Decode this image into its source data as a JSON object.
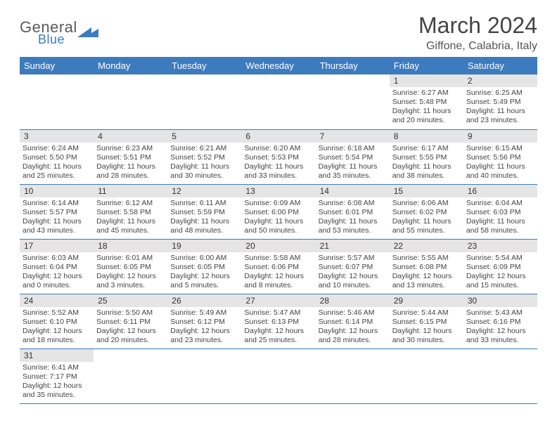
{
  "logo": {
    "general": "General",
    "blue": "Blue"
  },
  "title": "March 2024",
  "location": "Giffone, Calabria, Italy",
  "colors": {
    "header_bg": "#3d7bbf",
    "header_text": "#ffffff",
    "daybar_bg": "#e5e5e5",
    "border": "#3d7bbf",
    "text": "#444444"
  },
  "weekdays": [
    "Sunday",
    "Monday",
    "Tuesday",
    "Wednesday",
    "Thursday",
    "Friday",
    "Saturday"
  ],
  "first_weekday_index": 5,
  "days": [
    {
      "n": 1,
      "sr": "6:27 AM",
      "ss": "5:48 PM",
      "dl": "11 hours and 20 minutes."
    },
    {
      "n": 2,
      "sr": "6:25 AM",
      "ss": "5:49 PM",
      "dl": "11 hours and 23 minutes."
    },
    {
      "n": 3,
      "sr": "6:24 AM",
      "ss": "5:50 PM",
      "dl": "11 hours and 25 minutes."
    },
    {
      "n": 4,
      "sr": "6:23 AM",
      "ss": "5:51 PM",
      "dl": "11 hours and 28 minutes."
    },
    {
      "n": 5,
      "sr": "6:21 AM",
      "ss": "5:52 PM",
      "dl": "11 hours and 30 minutes."
    },
    {
      "n": 6,
      "sr": "6:20 AM",
      "ss": "5:53 PM",
      "dl": "11 hours and 33 minutes."
    },
    {
      "n": 7,
      "sr": "6:18 AM",
      "ss": "5:54 PM",
      "dl": "11 hours and 35 minutes."
    },
    {
      "n": 8,
      "sr": "6:17 AM",
      "ss": "5:55 PM",
      "dl": "11 hours and 38 minutes."
    },
    {
      "n": 9,
      "sr": "6:15 AM",
      "ss": "5:56 PM",
      "dl": "11 hours and 40 minutes."
    },
    {
      "n": 10,
      "sr": "6:14 AM",
      "ss": "5:57 PM",
      "dl": "11 hours and 43 minutes."
    },
    {
      "n": 11,
      "sr": "6:12 AM",
      "ss": "5:58 PM",
      "dl": "11 hours and 45 minutes."
    },
    {
      "n": 12,
      "sr": "6:11 AM",
      "ss": "5:59 PM",
      "dl": "11 hours and 48 minutes."
    },
    {
      "n": 13,
      "sr": "6:09 AM",
      "ss": "6:00 PM",
      "dl": "11 hours and 50 minutes."
    },
    {
      "n": 14,
      "sr": "6:08 AM",
      "ss": "6:01 PM",
      "dl": "11 hours and 53 minutes."
    },
    {
      "n": 15,
      "sr": "6:06 AM",
      "ss": "6:02 PM",
      "dl": "11 hours and 55 minutes."
    },
    {
      "n": 16,
      "sr": "6:04 AM",
      "ss": "6:03 PM",
      "dl": "11 hours and 58 minutes."
    },
    {
      "n": 17,
      "sr": "6:03 AM",
      "ss": "6:04 PM",
      "dl": "12 hours and 0 minutes."
    },
    {
      "n": 18,
      "sr": "6:01 AM",
      "ss": "6:05 PM",
      "dl": "12 hours and 3 minutes."
    },
    {
      "n": 19,
      "sr": "6:00 AM",
      "ss": "6:05 PM",
      "dl": "12 hours and 5 minutes."
    },
    {
      "n": 20,
      "sr": "5:58 AM",
      "ss": "6:06 PM",
      "dl": "12 hours and 8 minutes."
    },
    {
      "n": 21,
      "sr": "5:57 AM",
      "ss": "6:07 PM",
      "dl": "12 hours and 10 minutes."
    },
    {
      "n": 22,
      "sr": "5:55 AM",
      "ss": "6:08 PM",
      "dl": "12 hours and 13 minutes."
    },
    {
      "n": 23,
      "sr": "5:54 AM",
      "ss": "6:09 PM",
      "dl": "12 hours and 15 minutes."
    },
    {
      "n": 24,
      "sr": "5:52 AM",
      "ss": "6:10 PM",
      "dl": "12 hours and 18 minutes."
    },
    {
      "n": 25,
      "sr": "5:50 AM",
      "ss": "6:11 PM",
      "dl": "12 hours and 20 minutes."
    },
    {
      "n": 26,
      "sr": "5:49 AM",
      "ss": "6:12 PM",
      "dl": "12 hours and 23 minutes."
    },
    {
      "n": 27,
      "sr": "5:47 AM",
      "ss": "6:13 PM",
      "dl": "12 hours and 25 minutes."
    },
    {
      "n": 28,
      "sr": "5:46 AM",
      "ss": "6:14 PM",
      "dl": "12 hours and 28 minutes."
    },
    {
      "n": 29,
      "sr": "5:44 AM",
      "ss": "6:15 PM",
      "dl": "12 hours and 30 minutes."
    },
    {
      "n": 30,
      "sr": "5:43 AM",
      "ss": "6:16 PM",
      "dl": "12 hours and 33 minutes."
    },
    {
      "n": 31,
      "sr": "6:41 AM",
      "ss": "7:17 PM",
      "dl": "12 hours and 35 minutes."
    }
  ],
  "labels": {
    "sunrise": "Sunrise:",
    "sunset": "Sunset:",
    "daylight": "Daylight:"
  }
}
